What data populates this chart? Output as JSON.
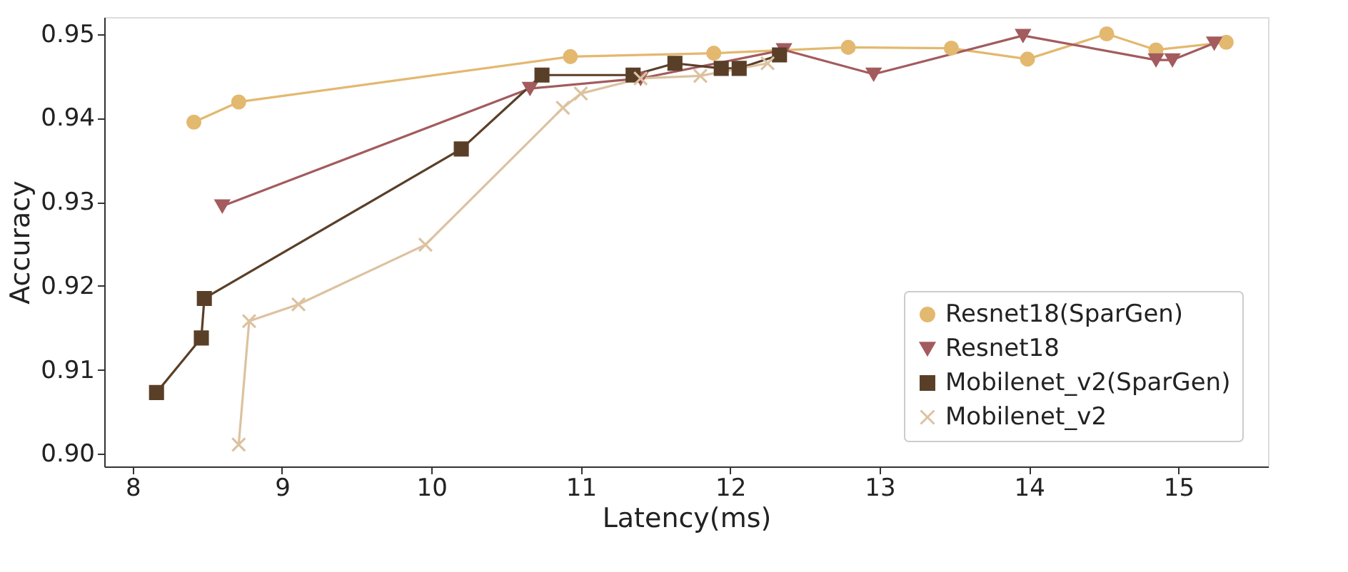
{
  "chart_data": {
    "type": "line",
    "xlabel": "Latency(ms)",
    "ylabel": "Accuracy",
    "xlim": [
      7.81,
      15.6
    ],
    "xticks": [
      8,
      9,
      10,
      11,
      12,
      13,
      14,
      15
    ],
    "ylim": [
      0.8985,
      0.952
    ],
    "yticks": [
      {
        "value": 0.9,
        "label": "0.90"
      },
      0.91,
      0.92,
      0.93,
      0.94,
      0.95
    ],
    "grid": false,
    "legend": "bottom right",
    "series": [
      {
        "name": "Resnet18(SparGen)",
        "color": "#e3b86f",
        "marker": "circle",
        "x": [
          8.41,
          8.71,
          10.93,
          11.89,
          12.79,
          13.48,
          13.99,
          14.52,
          14.85,
          15.32
        ],
        "values": [
          0.9395,
          0.9419,
          0.9473,
          0.9477,
          0.9484,
          0.9483,
          0.947,
          0.95,
          0.9481,
          0.949
        ]
      },
      {
        "name": "Resnet18",
        "color": "#a35b5e",
        "marker": "triangle",
        "x": [
          8.6,
          10.66,
          11.4,
          12.36,
          12.96,
          13.96,
          14.85,
          14.96,
          15.24
        ],
        "values": [
          0.9295,
          0.9435,
          0.9447,
          0.9481,
          0.9452,
          0.9498,
          0.9469,
          0.9469,
          0.9489
        ]
      },
      {
        "name": "Mobilenet_v2(SparGen)",
        "color": "#5a3f28",
        "marker": "square",
        "x": [
          8.16,
          8.46,
          8.48,
          10.2,
          10.74,
          11.35,
          11.63,
          11.94,
          12.06,
          12.33
        ],
        "values": [
          0.9073,
          0.9138,
          0.9185,
          0.9363,
          0.9451,
          0.9451,
          0.9465,
          0.9459,
          0.9459,
          0.9475
        ]
      },
      {
        "name": "Mobilenet_v2",
        "color": "#dcc2a0",
        "marker": "cross",
        "x": [
          8.71,
          8.78,
          9.11,
          9.96,
          10.88,
          11.0,
          11.4,
          11.8,
          12.25
        ],
        "values": [
          0.9011,
          0.9158,
          0.9178,
          0.9249,
          0.9412,
          0.9429,
          0.9447,
          0.945,
          0.9465
        ]
      }
    ]
  }
}
